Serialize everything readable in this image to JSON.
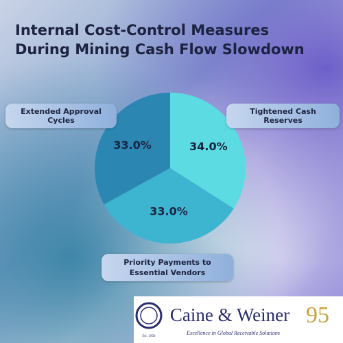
{
  "chart_data": {
    "type": "pie",
    "title": "Internal Cost-Control Measures During Mining Cash Flow Slowdown",
    "categories": [
      "Tightened Cash Reserves",
      "Priority Payments to Essential Vendors",
      "Extended Approval Cycles"
    ],
    "values": [
      34,
      33,
      33
    ],
    "value_labels": [
      "34.0%",
      "33.0%",
      "33.0%"
    ],
    "colors": [
      "#5cdbe2",
      "#3db4d0",
      "#2b87b2"
    ]
  },
  "logo": {
    "name": "Caine & Weiner",
    "anniversary": "95",
    "tagline": "Excellence in Global Receivable Solutions",
    "established": "Est. 1930"
  }
}
